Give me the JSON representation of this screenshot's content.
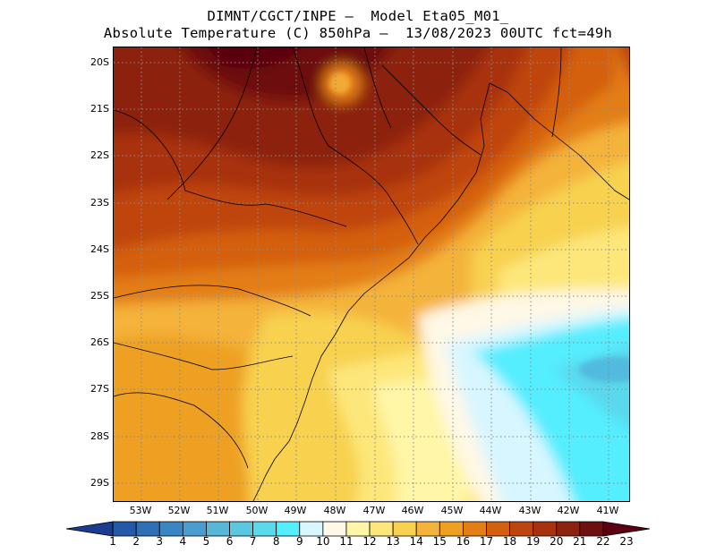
{
  "title": {
    "line1": "DIMNT/CGCT/INPE —  Model Eta05_M01_",
    "line2": "Absolute Temperature (C) 850hPa —  13/08/2023 00UTC fct=49h"
  },
  "lat_labels": [
    "20S",
    "21S",
    "22S",
    "23S",
    "24S",
    "25S",
    "26S",
    "27S",
    "28S",
    "29S"
  ],
  "lon_labels": [
    "53W",
    "52W",
    "51W",
    "50W",
    "49W",
    "48W",
    "47W",
    "46W",
    "45W",
    "44W",
    "43W",
    "42W",
    "41W"
  ],
  "colorbar": {
    "labels": [
      "1",
      "2",
      "3",
      "4",
      "5",
      "6",
      "7",
      "8",
      "9",
      "10",
      "11",
      "12",
      "13",
      "14",
      "15",
      "16",
      "17",
      "18",
      "19",
      "20",
      "21",
      "22",
      "23"
    ],
    "colors": [
      "#1a3d8f",
      "#2458a8",
      "#2f6fb8",
      "#3a86c4",
      "#4a9ecf",
      "#58b6d6",
      "#5cc8e0",
      "#5ad8ec",
      "#55eeff",
      "#d8f6ff",
      "#fff8e6",
      "#fff6a8",
      "#fde77a",
      "#f8d150",
      "#f4b33b",
      "#eea020",
      "#e37d16",
      "#d45f10",
      "#bf450e",
      "#a8320d",
      "#8c2210",
      "#6e1010",
      "#5a0010"
    ]
  },
  "map": {
    "background_color": "#f4b33b",
    "coastline_color": "#000000",
    "grid_color": "#8a8a8a"
  }
}
